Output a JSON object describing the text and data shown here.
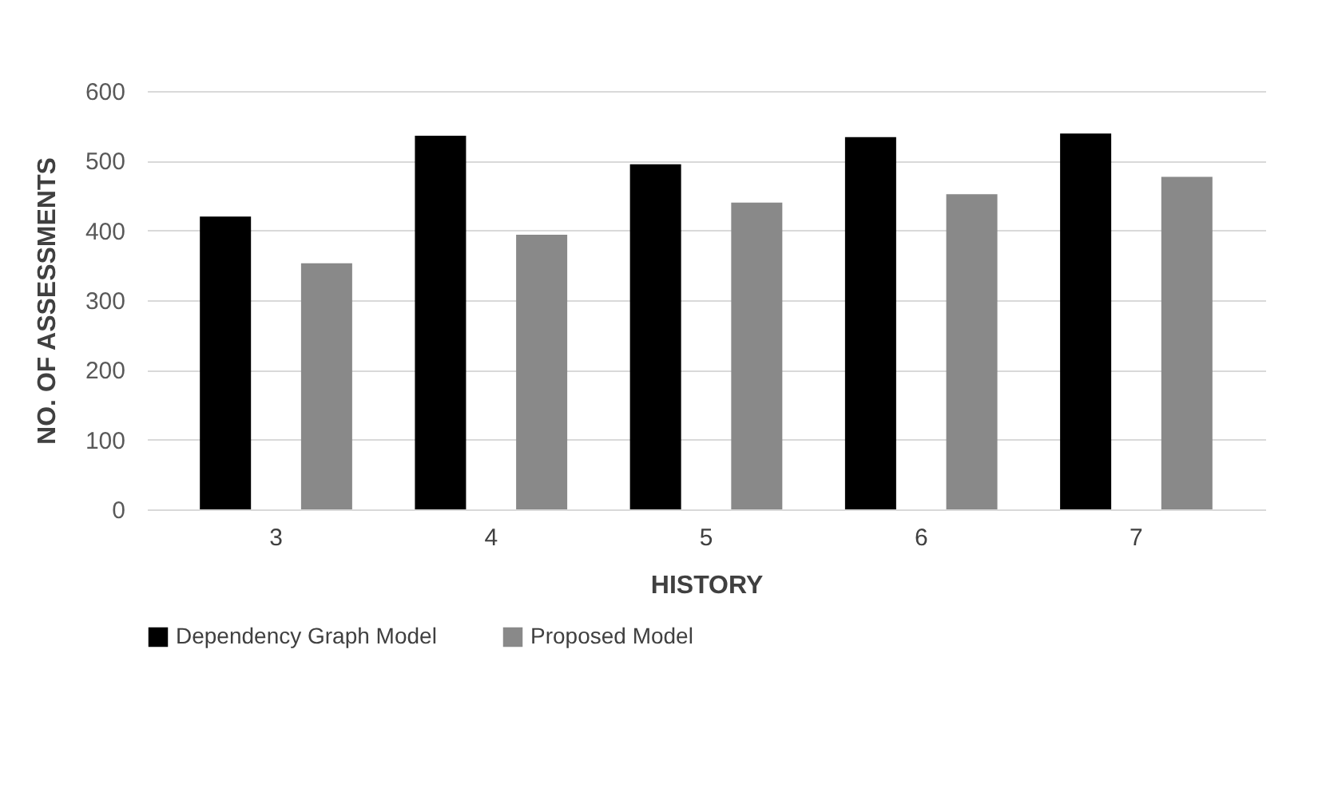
{
  "chart_data": {
    "type": "bar",
    "xlabel": "HISTORY",
    "ylabel": "NO. OF ASSESSMENTS",
    "categories": [
      "3",
      "4",
      "5",
      "6",
      "7"
    ],
    "series": [
      {
        "name": "Dependency Graph Model",
        "color": "#000000",
        "values": [
          420,
          536,
          495,
          534,
          539
        ]
      },
      {
        "name": "Proposed Model",
        "color": "#898989",
        "values": [
          353,
          394,
          440,
          452,
          477
        ]
      }
    ],
    "ylim": [
      0,
      600
    ],
    "yticks": [
      0,
      100,
      200,
      300,
      400,
      500,
      600
    ],
    "grid": "y",
    "legend": "bottom"
  }
}
